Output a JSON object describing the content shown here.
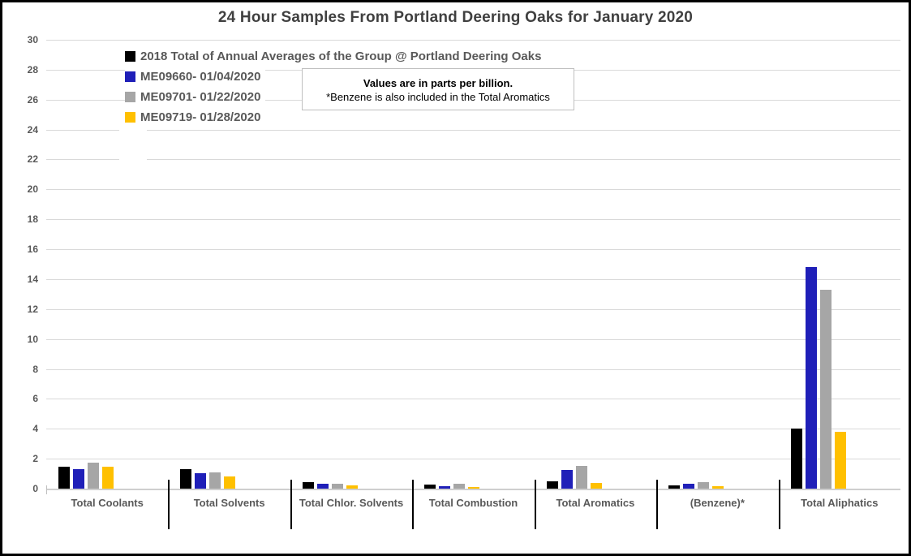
{
  "window": {
    "background": "#ffffff",
    "border_color": "#000000"
  },
  "chart_data": {
    "type": "bar",
    "title": "24 Hour Samples From Portland Deering Oaks for January 2020",
    "note": {
      "line1": "Values are in parts per billion.",
      "line2": "*Benzene is also included in the Total Aromatics"
    },
    "categories": [
      "Total Coolants",
      "Total Solvents",
      "Total Chlor. Solvents",
      "Total Combustion",
      "Total Aromatics",
      "(Benzene)*",
      "Total Aliphatics"
    ],
    "series": [
      {
        "name": "2018 Total of Annual Averages of the Group @ Portland Deering Oaks",
        "color": "#000000",
        "values": [
          1.45,
          1.3,
          0.45,
          0.25,
          0.5,
          0.2,
          4.0
        ]
      },
      {
        "name": "ME09660- 01/04/2020",
        "color": "#1f1fb8",
        "values": [
          1.3,
          1.05,
          0.3,
          0.15,
          1.25,
          0.35,
          14.8
        ]
      },
      {
        "name": "ME09701- 01/22/2020",
        "color": "#a6a6a6",
        "values": [
          1.75,
          1.1,
          0.3,
          0.3,
          1.5,
          0.45,
          13.3
        ]
      },
      {
        "name": "ME09719- 01/28/2020",
        "color": "#ffc000",
        "values": [
          1.45,
          0.8,
          0.2,
          0.1,
          0.4,
          0.15,
          3.8
        ]
      }
    ],
    "ylim": [
      0,
      30
    ],
    "ytick_step": 2,
    "yticks": [
      "0",
      "2",
      "4",
      "6",
      "8",
      "10",
      "12",
      "14",
      "16",
      "18",
      "20",
      "22",
      "24",
      "26",
      "28",
      "30"
    ],
    "grid": true,
    "legend_position": "top-left",
    "styles": {
      "gridline_color": "#d9d9d9",
      "axis_color": "#cfcfcf",
      "text_color": "#595959",
      "title_color": "#404040"
    }
  }
}
